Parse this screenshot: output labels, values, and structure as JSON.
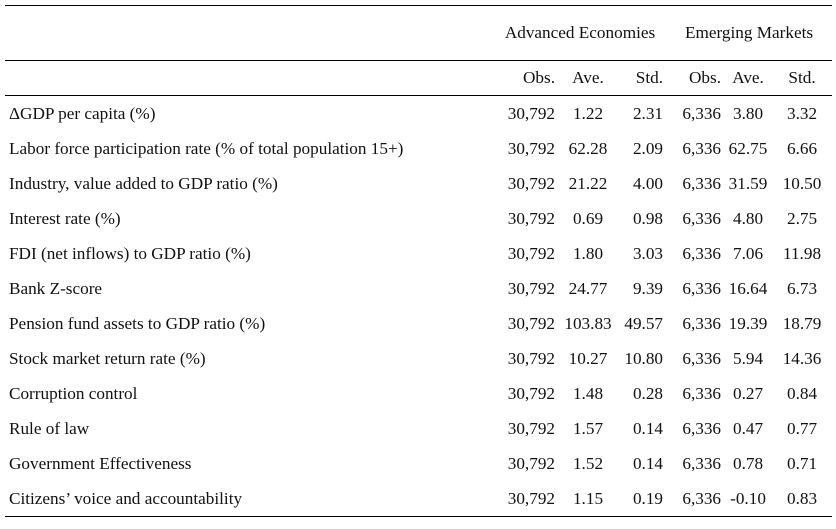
{
  "groups": {
    "advanced": "Advanced Economies",
    "emerging": "Emerging Markets"
  },
  "columns": [
    "Obs.",
    "Ave.",
    "Std.",
    "Obs.",
    "Ave.",
    "Std."
  ],
  "rows": [
    {
      "label": "ΔGDP per capita (%)",
      "values": [
        "30,792",
        "1.22",
        "2.31",
        "6,336",
        "3.80",
        "3.32"
      ]
    },
    {
      "label": "Labor force participation rate (% of total population 15+)",
      "values": [
        "30,792",
        "62.28",
        "2.09",
        "6,336",
        "62.75",
        "6.66"
      ]
    },
    {
      "label": "Industry, value added to GDP ratio (%)",
      "values": [
        "30,792",
        "21.22",
        "4.00",
        "6,336",
        "31.59",
        "10.50"
      ]
    },
    {
      "label": "Interest rate (%)",
      "values": [
        "30,792",
        "0.69",
        "0.98",
        "6,336",
        "4.80",
        "2.75"
      ]
    },
    {
      "label": "FDI (net inflows) to GDP ratio (%)",
      "values": [
        "30,792",
        "1.80",
        "3.03",
        "6,336",
        "7.06",
        "11.98"
      ]
    },
    {
      "label": "Bank Z-score",
      "values": [
        "30,792",
        "24.77",
        "9.39",
        "6,336",
        "16.64",
        "6.73"
      ]
    },
    {
      "label": "Pension fund assets to GDP ratio (%)",
      "values": [
        "30,792",
        "103.83",
        "49.57",
        "6,336",
        "19.39",
        "18.79"
      ]
    },
    {
      "label": "Stock market return rate (%)",
      "values": [
        "30,792",
        "10.27",
        "10.80",
        "6,336",
        "5.94",
        "14.36"
      ]
    },
    {
      "label": "Corruption control",
      "values": [
        "30,792",
        "1.48",
        "0.28",
        "6,336",
        "0.27",
        "0.84"
      ]
    },
    {
      "label": "Rule of law",
      "values": [
        "30,792",
        "1.57",
        "0.14",
        "6,336",
        "0.47",
        "0.77"
      ]
    },
    {
      "label": "Government Effectiveness",
      "values": [
        "30,792",
        "1.52",
        "0.14",
        "6,336",
        "0.78",
        "0.71"
      ]
    },
    {
      "label": "Citizens’ voice and accountability",
      "values": [
        "30,792",
        "1.15",
        "0.19",
        "6,336",
        "-0.10",
        "0.83"
      ]
    }
  ]
}
